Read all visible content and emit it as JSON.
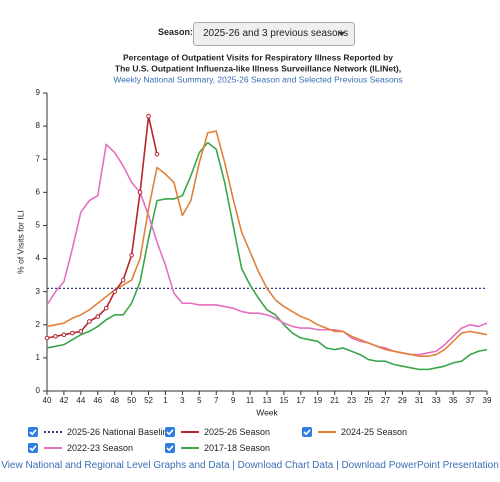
{
  "controls": {
    "season_label": "Season:",
    "season_value": "2025-26 and 3 previous seasons"
  },
  "chart_data": {
    "type": "line",
    "title": [
      "Percentage of Outpatient Visits for Respiratory Illness Reported by",
      "The U.S. Outpatient Influenza-like Illness Surveillance Network (ILINet),"
    ],
    "subtitle": "Weekly National Summary, 2025-26 Season and Selected Previous Seasons",
    "y_label": "% of Visits for ILI",
    "x_label": "Week",
    "categories": [
      "40",
      null,
      "42",
      null,
      "44",
      null,
      "46",
      null,
      "48",
      null,
      "50",
      null,
      "52",
      null,
      "1",
      null,
      "3",
      null,
      "5",
      null,
      "7",
      null,
      "9",
      null,
      "11",
      null,
      "13",
      null,
      "15",
      null,
      "17",
      null,
      "19",
      null,
      "21",
      null,
      "23",
      null,
      "25",
      null,
      "27",
      null,
      "29",
      null,
      "31",
      null,
      "33",
      null,
      "35",
      null,
      "37",
      null,
      "39"
    ],
    "ylim": [
      0,
      9
    ],
    "yticks": [
      0,
      1,
      2,
      3,
      4,
      5,
      6,
      7,
      8,
      9
    ],
    "grid": false,
    "baseline": {
      "name": "2025-26 National Baseline",
      "value": 3.1,
      "color": "#2f3b8c"
    },
    "series": [
      {
        "name": "2025-26 Season",
        "color": "#b5262e",
        "markers": true,
        "values": [
          1.6,
          1.65,
          1.7,
          1.75,
          1.8,
          2.1,
          2.25,
          2.5,
          3.0,
          3.35,
          4.1,
          6.0,
          8.3,
          7.15,
          null,
          null,
          null,
          null,
          null,
          null,
          null,
          null,
          null,
          null,
          null,
          null,
          null,
          null,
          null,
          null,
          null,
          null,
          null,
          null,
          null,
          null,
          null,
          null,
          null,
          null,
          null,
          null,
          null,
          null,
          null,
          null,
          null,
          null,
          null,
          null,
          null,
          null,
          null
        ]
      },
      {
        "name": "2024-25 Season",
        "color": "#e0813a",
        "markers": false,
        "values": [
          1.95,
          2.0,
          2.05,
          2.2,
          2.3,
          2.45,
          2.65,
          2.85,
          3.05,
          3.2,
          3.35,
          4.0,
          5.5,
          6.75,
          6.55,
          6.3,
          5.3,
          5.75,
          6.9,
          7.8,
          7.85,
          6.9,
          5.8,
          4.8,
          4.2,
          3.6,
          3.1,
          2.75,
          2.55,
          2.4,
          2.25,
          2.15,
          2.0,
          1.9,
          1.8,
          1.8,
          1.65,
          1.55,
          1.45,
          1.35,
          1.25,
          1.2,
          1.15,
          1.1,
          1.05,
          1.05,
          1.1,
          1.25,
          1.5,
          1.75,
          1.8,
          1.75,
          1.7
        ]
      },
      {
        "name": "2022-23 Season",
        "color": "#e56fc0",
        "markers": false,
        "values": [
          2.6,
          3.0,
          3.3,
          4.3,
          5.4,
          5.75,
          5.9,
          7.45,
          7.2,
          6.8,
          6.3,
          6.0,
          5.3,
          4.5,
          3.8,
          2.95,
          2.65,
          2.65,
          2.6,
          2.6,
          2.6,
          2.55,
          2.5,
          2.4,
          2.35,
          2.35,
          2.3,
          2.2,
          2.05,
          1.95,
          1.9,
          1.9,
          1.85,
          1.85,
          1.85,
          1.8,
          1.6,
          1.5,
          1.45,
          1.35,
          1.3,
          1.2,
          1.15,
          1.1,
          1.1,
          1.15,
          1.2,
          1.4,
          1.65,
          1.9,
          2.0,
          1.95,
          2.05
        ]
      },
      {
        "name": "2017-18 Season",
        "color": "#3aa64a",
        "markers": false,
        "values": [
          1.3,
          1.35,
          1.4,
          1.55,
          1.7,
          1.8,
          1.95,
          2.15,
          2.3,
          2.3,
          2.65,
          3.3,
          4.6,
          5.75,
          5.8,
          5.8,
          5.9,
          6.5,
          7.2,
          7.5,
          7.3,
          6.3,
          5.0,
          3.7,
          3.2,
          2.8,
          2.45,
          2.3,
          2.0,
          1.75,
          1.6,
          1.55,
          1.5,
          1.3,
          1.25,
          1.3,
          1.2,
          1.1,
          0.95,
          0.9,
          0.9,
          0.8,
          0.75,
          0.7,
          0.65,
          0.65,
          0.7,
          0.75,
          0.85,
          0.9,
          1.1,
          1.2,
          1.25
        ]
      }
    ]
  },
  "footer": {
    "links": [
      "View National and Regional Level Graphs and Data",
      "Download Chart Data",
      "Download PowerPoint Presentation"
    ],
    "separator": "|"
  }
}
